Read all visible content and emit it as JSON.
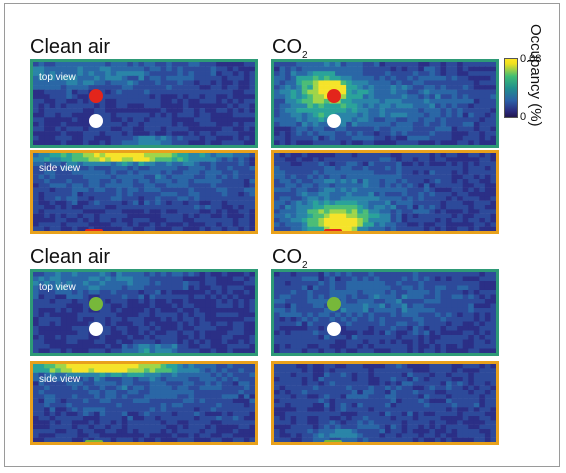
{
  "colorbar": {
    "title": "Occupancy (%)",
    "max_label": "0.08",
    "min_label": "0",
    "range": [
      0,
      0.08
    ]
  },
  "rows": [
    {
      "left_label": "Clean air",
      "right_label_main": "CO",
      "right_label_sub": "2",
      "marker_color": "#e3251b",
      "top_view_label": "top view",
      "side_view_label": "side view"
    },
    {
      "left_label": "Clean air",
      "right_label_main": "CO",
      "right_label_sub": "2",
      "marker_color": "#77b83a",
      "top_view_label": "top view",
      "side_view_label": "side view"
    }
  ],
  "colors": {
    "top_view_border": "#2e9a77",
    "side_view_border": "#e8a11c",
    "background_dark": "#2a1f6e",
    "white_marker": "#ffffff"
  }
}
